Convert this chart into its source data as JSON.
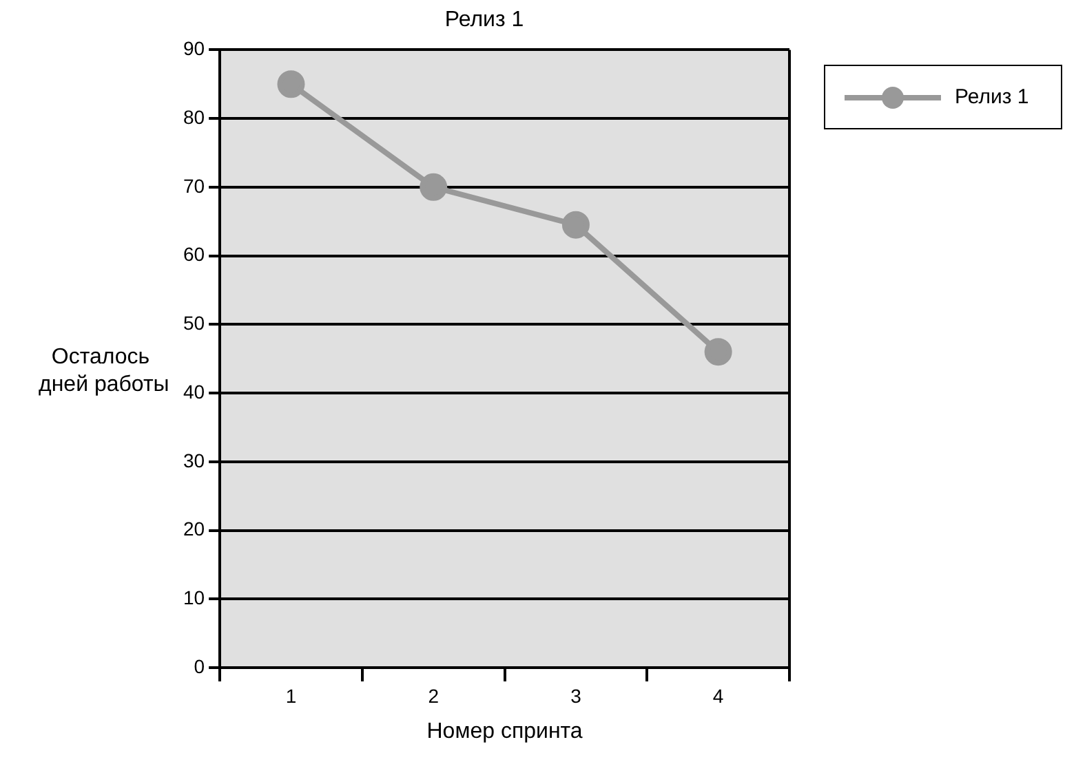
{
  "chart_data": {
    "type": "line",
    "title": "Релиз 1",
    "xlabel": "Номер спринта",
    "ylabel": "Осталось\nдней работы",
    "categories": [
      "1",
      "2",
      "3",
      "4"
    ],
    "series": [
      {
        "name": "Релиз 1",
        "color": "#999999",
        "values": [
          85,
          70,
          64.5,
          46
        ]
      }
    ],
    "ylim": [
      0,
      90
    ],
    "yticks": [
      0,
      10,
      20,
      30,
      40,
      50,
      60,
      70,
      80,
      90
    ],
    "grid": "y",
    "legend": "top right",
    "marker": "circle",
    "line_style": "solid"
  }
}
